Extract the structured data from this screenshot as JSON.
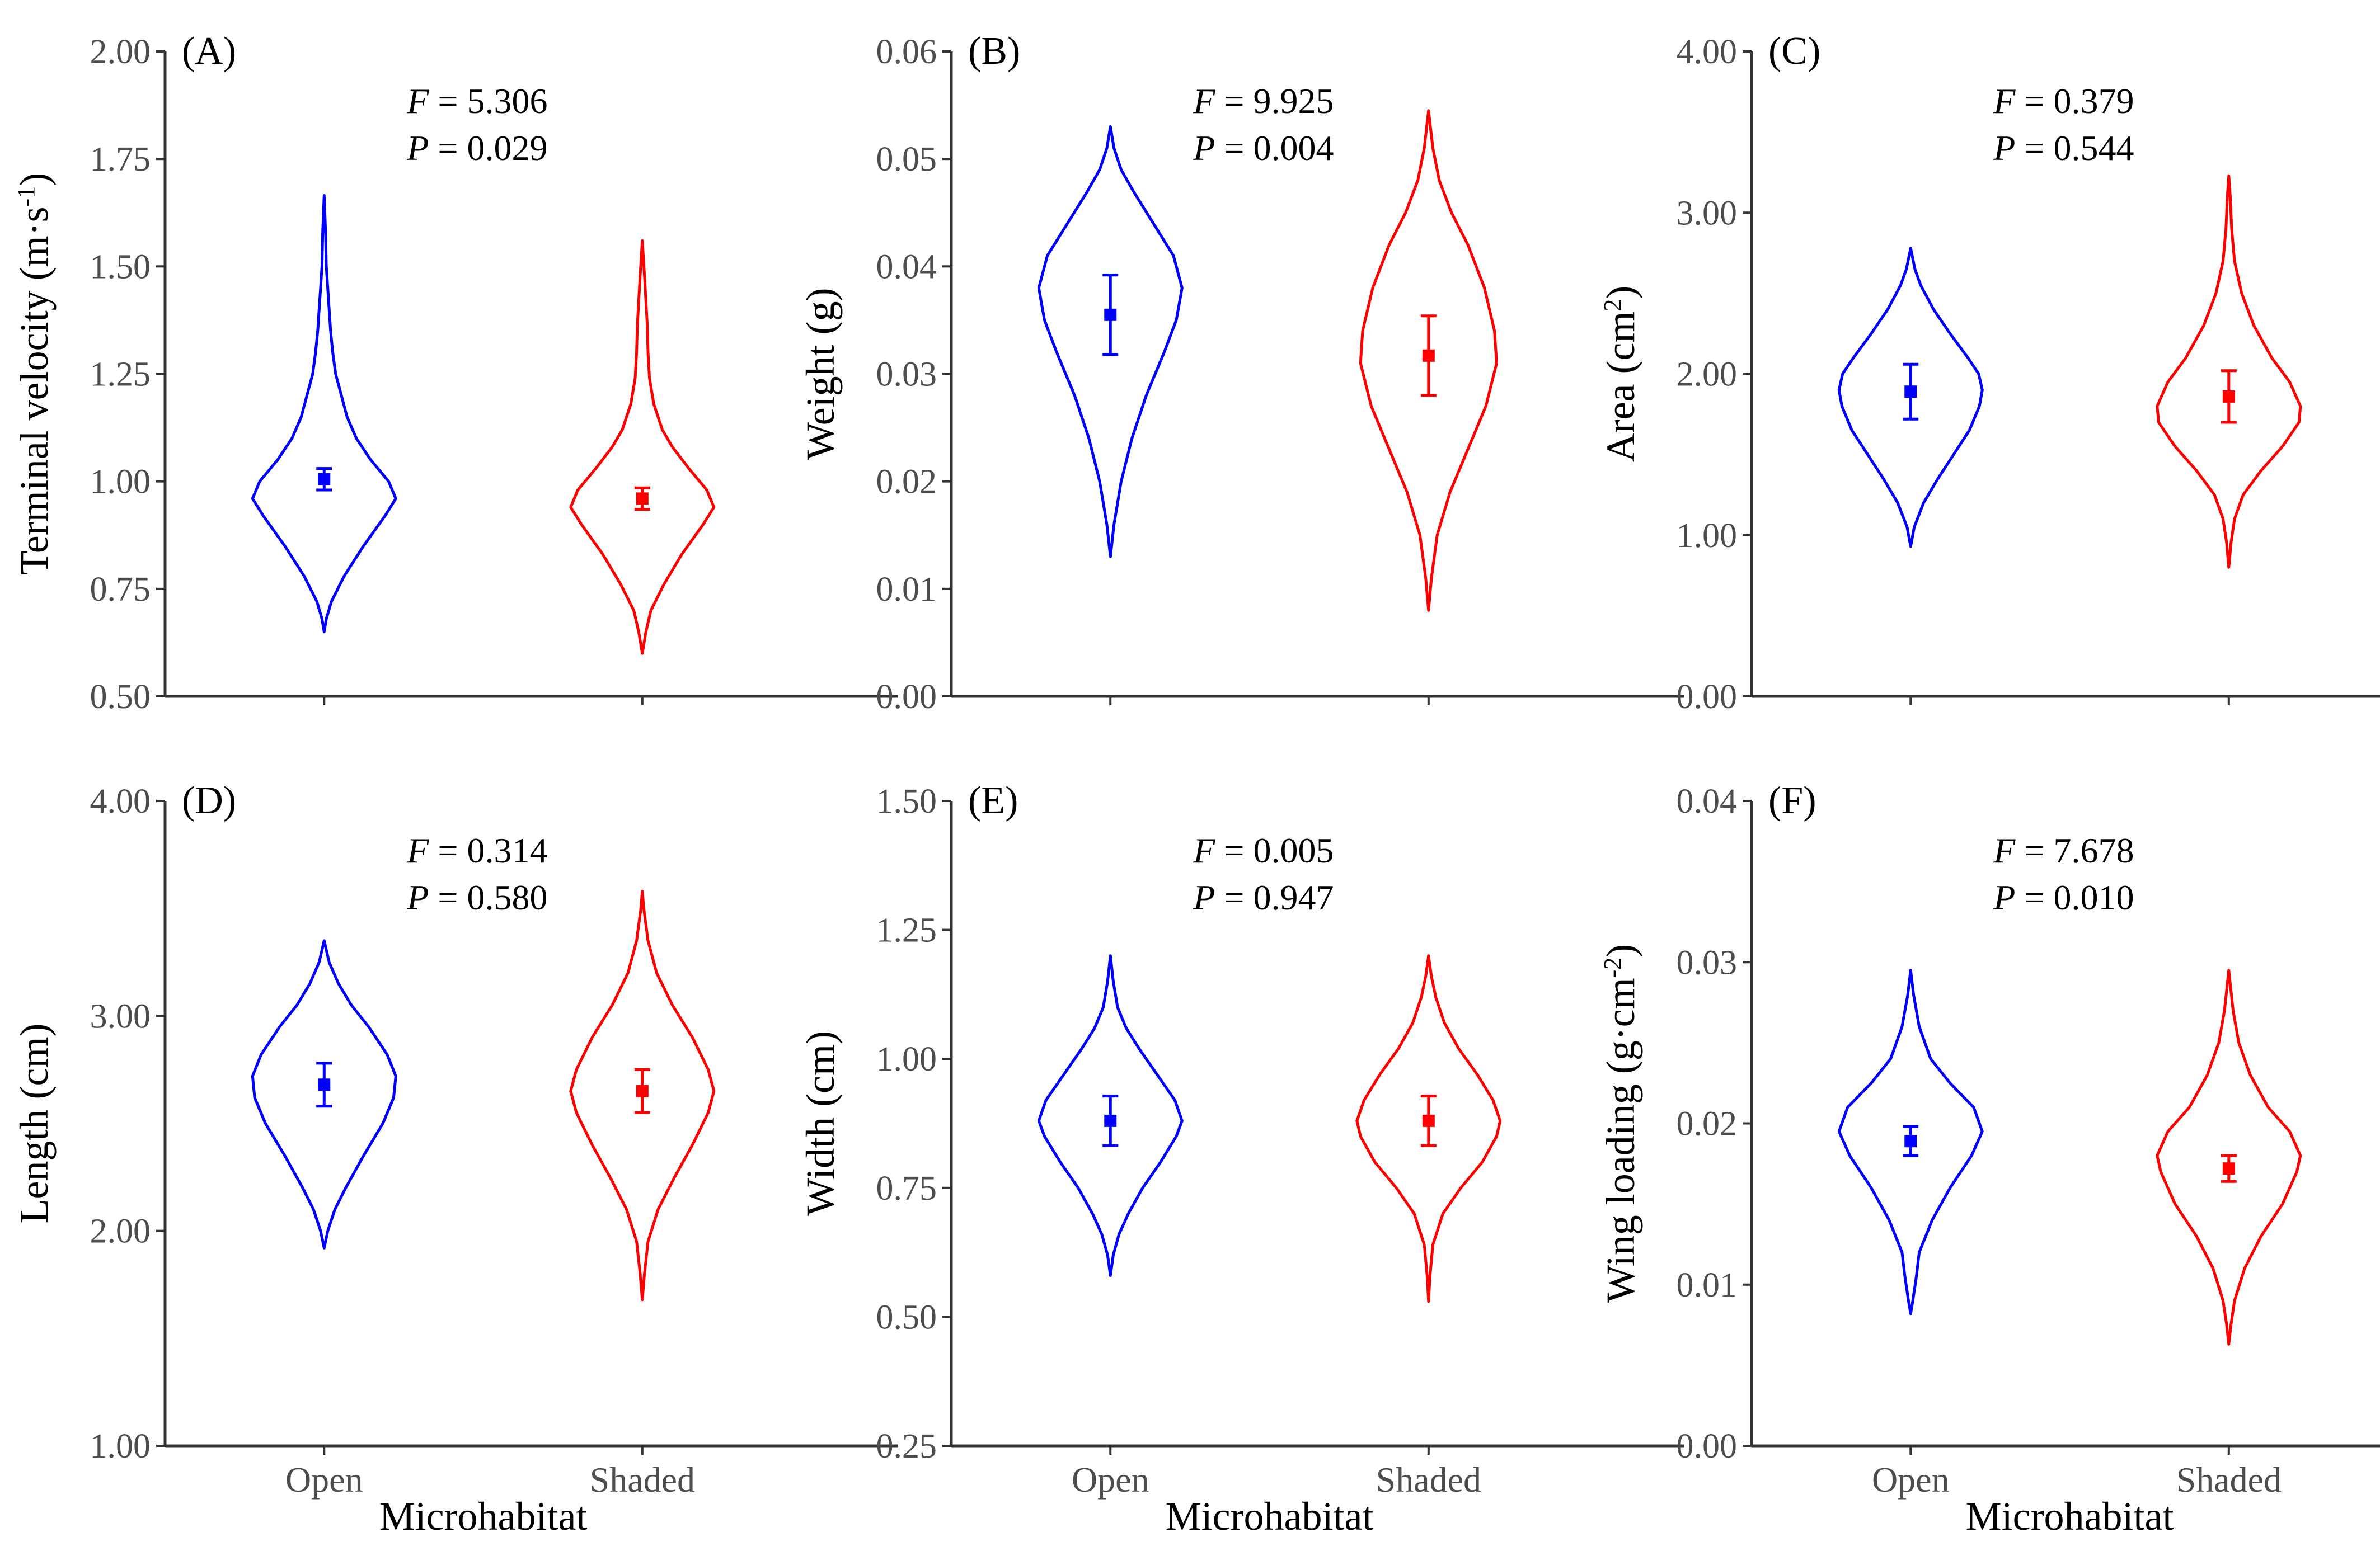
{
  "chart_data": {
    "type": "violin",
    "layout": "2x3 grid",
    "series_colors": {
      "Open": "#0000ff",
      "Shaded": "#ff0000"
    },
    "x_title": "Microhabitat",
    "categories": [
      "Open",
      "Shaded"
    ],
    "panels": [
      {
        "tag": "(A)",
        "ylabel_main": "Terminal velocity (m·s",
        "ylabel_sup": "-1",
        "ylabel_end": ")",
        "f_label": "F",
        "f_value": " = 5.306",
        "p_label": "P",
        "p_value": " = 0.029",
        "ylim": [
          0.5,
          2.0
        ],
        "ticks": [
          "0.50",
          "0.75",
          "1.00",
          "1.25",
          "1.50",
          "1.75",
          "2.00"
        ],
        "show_xlabels": false,
        "groups": [
          {
            "name": "Open",
            "color": "#0000ff",
            "mean": 1.005,
            "err": 0.025,
            "min": 0.65,
            "max": 1.665,
            "profile": [
              [
                0.65,
                0.0
              ],
              [
                0.68,
                0.03
              ],
              [
                0.72,
                0.1
              ],
              [
                0.78,
                0.28
              ],
              [
                0.85,
                0.55
              ],
              [
                0.92,
                0.85
              ],
              [
                0.96,
                1.0
              ],
              [
                1.0,
                0.9
              ],
              [
                1.05,
                0.65
              ],
              [
                1.1,
                0.45
              ],
              [
                1.15,
                0.32
              ],
              [
                1.2,
                0.24
              ],
              [
                1.25,
                0.16
              ],
              [
                1.3,
                0.12
              ],
              [
                1.35,
                0.09
              ],
              [
                1.4,
                0.07
              ],
              [
                1.45,
                0.05
              ],
              [
                1.5,
                0.03
              ],
              [
                1.58,
                0.02
              ],
              [
                1.665,
                0.0
              ]
            ]
          },
          {
            "name": "Shaded",
            "color": "#ff0000",
            "mean": 0.96,
            "err": 0.025,
            "min": 0.6,
            "max": 1.56,
            "profile": [
              [
                0.6,
                0.0
              ],
              [
                0.65,
                0.05
              ],
              [
                0.7,
                0.12
              ],
              [
                0.76,
                0.3
              ],
              [
                0.83,
                0.55
              ],
              [
                0.9,
                0.85
              ],
              [
                0.94,
                1.0
              ],
              [
                0.98,
                0.9
              ],
              [
                1.03,
                0.65
              ],
              [
                1.08,
                0.42
              ],
              [
                1.12,
                0.28
              ],
              [
                1.18,
                0.16
              ],
              [
                1.24,
                0.1
              ],
              [
                1.3,
                0.08
              ],
              [
                1.36,
                0.07
              ],
              [
                1.42,
                0.05
              ],
              [
                1.48,
                0.03
              ],
              [
                1.56,
                0.0
              ]
            ]
          }
        ]
      },
      {
        "tag": "(B)",
        "ylabel_main": "Weight (g)",
        "ylabel_sup": "",
        "ylabel_end": "",
        "f_label": "F",
        "f_value": " = 9.925",
        "p_label": "P",
        "p_value": " = 0.004",
        "ylim": [
          0.0,
          0.06
        ],
        "ticks": [
          "0.00",
          "0.01",
          "0.02",
          "0.03",
          "0.04",
          "0.05",
          "0.06"
        ],
        "show_xlabels": false,
        "groups": [
          {
            "name": "Open",
            "color": "#0000ff",
            "mean": 0.0355,
            "err": 0.0037,
            "min": 0.013,
            "max": 0.053,
            "profile": [
              [
                0.013,
                0.0
              ],
              [
                0.016,
                0.05
              ],
              [
                0.02,
                0.15
              ],
              [
                0.024,
                0.3
              ],
              [
                0.028,
                0.5
              ],
              [
                0.032,
                0.75
              ],
              [
                0.035,
                0.92
              ],
              [
                0.038,
                1.0
              ],
              [
                0.041,
                0.88
              ],
              [
                0.044,
                0.6
              ],
              [
                0.047,
                0.32
              ],
              [
                0.049,
                0.15
              ],
              [
                0.051,
                0.05
              ],
              [
                0.053,
                0.0
              ]
            ]
          },
          {
            "name": "Shaded",
            "color": "#ff0000",
            "mean": 0.0317,
            "err": 0.0037,
            "min": 0.008,
            "max": 0.0545,
            "profile": [
              [
                0.008,
                0.0
              ],
              [
                0.011,
                0.04
              ],
              [
                0.015,
                0.12
              ],
              [
                0.019,
                0.3
              ],
              [
                0.023,
                0.55
              ],
              [
                0.027,
                0.8
              ],
              [
                0.031,
                0.95
              ],
              [
                0.034,
                0.92
              ],
              [
                0.038,
                0.78
              ],
              [
                0.042,
                0.55
              ],
              [
                0.045,
                0.32
              ],
              [
                0.048,
                0.15
              ],
              [
                0.051,
                0.06
              ],
              [
                0.0545,
                0.0
              ]
            ]
          }
        ]
      },
      {
        "tag": "(C)",
        "ylabel_main": "Area (cm",
        "ylabel_sup": "2",
        "ylabel_end": ")",
        "f_label": "F",
        "f_value": " = 0.379",
        "p_label": "P",
        "p_value": " = 0.544",
        "ylim": [
          0.0,
          4.0
        ],
        "ticks": [
          "0.00",
          "1.00",
          "2.00",
          "3.00",
          "4.00"
        ],
        "show_xlabels": false,
        "groups": [
          {
            "name": "Open",
            "color": "#0000ff",
            "mean": 1.89,
            "err": 0.17,
            "min": 0.93,
            "max": 2.78,
            "profile": [
              [
                0.93,
                0.0
              ],
              [
                1.05,
                0.05
              ],
              [
                1.2,
                0.18
              ],
              [
                1.35,
                0.38
              ],
              [
                1.5,
                0.6
              ],
              [
                1.65,
                0.82
              ],
              [
                1.8,
                0.96
              ],
              [
                1.9,
                1.0
              ],
              [
                2.0,
                0.95
              ],
              [
                2.1,
                0.8
              ],
              [
                2.25,
                0.55
              ],
              [
                2.4,
                0.32
              ],
              [
                2.55,
                0.14
              ],
              [
                2.65,
                0.06
              ],
              [
                2.78,
                0.0
              ]
            ]
          },
          {
            "name": "Shaded",
            "color": "#ff0000",
            "mean": 1.86,
            "err": 0.16,
            "min": 0.8,
            "max": 3.23,
            "profile": [
              [
                0.8,
                0.0
              ],
              [
                0.95,
                0.03
              ],
              [
                1.1,
                0.08
              ],
              [
                1.25,
                0.2
              ],
              [
                1.4,
                0.45
              ],
              [
                1.55,
                0.75
              ],
              [
                1.7,
                0.98
              ],
              [
                1.8,
                1.0
              ],
              [
                1.95,
                0.85
              ],
              [
                2.1,
                0.6
              ],
              [
                2.3,
                0.35
              ],
              [
                2.5,
                0.18
              ],
              [
                2.7,
                0.08
              ],
              [
                2.9,
                0.04
              ],
              [
                3.1,
                0.02
              ],
              [
                3.23,
                0.0
              ]
            ]
          }
        ]
      },
      {
        "tag": "(D)",
        "ylabel_main": "Length (cm)",
        "ylabel_sup": "",
        "ylabel_end": "",
        "f_label": "F",
        "f_value": " = 0.314",
        "p_label": "P",
        "p_value": " = 0.580",
        "ylim": [
          1.0,
          4.0
        ],
        "ticks": [
          "1.00",
          "2.00",
          "3.00",
          "4.00"
        ],
        "show_xlabels": true,
        "groups": [
          {
            "name": "Open",
            "color": "#0000ff",
            "mean": 2.68,
            "err": 0.1,
            "min": 1.92,
            "max": 3.35,
            "profile": [
              [
                1.92,
                0.0
              ],
              [
                2.0,
                0.05
              ],
              [
                2.1,
                0.15
              ],
              [
                2.2,
                0.3
              ],
              [
                2.35,
                0.55
              ],
              [
                2.5,
                0.82
              ],
              [
                2.62,
                0.97
              ],
              [
                2.72,
                1.0
              ],
              [
                2.82,
                0.88
              ],
              [
                2.95,
                0.62
              ],
              [
                3.05,
                0.38
              ],
              [
                3.15,
                0.2
              ],
              [
                3.25,
                0.07
              ],
              [
                3.35,
                0.0
              ]
            ]
          },
          {
            "name": "Shaded",
            "color": "#ff0000",
            "mean": 2.65,
            "err": 0.1,
            "min": 1.68,
            "max": 3.58,
            "profile": [
              [
                1.68,
                0.0
              ],
              [
                1.8,
                0.03
              ],
              [
                1.95,
                0.08
              ],
              [
                2.1,
                0.22
              ],
              [
                2.25,
                0.45
              ],
              [
                2.4,
                0.7
              ],
              [
                2.55,
                0.92
              ],
              [
                2.65,
                1.0
              ],
              [
                2.75,
                0.92
              ],
              [
                2.9,
                0.7
              ],
              [
                3.05,
                0.42
              ],
              [
                3.2,
                0.2
              ],
              [
                3.35,
                0.08
              ],
              [
                3.5,
                0.02
              ],
              [
                3.58,
                0.0
              ]
            ]
          }
        ]
      },
      {
        "tag": "(E)",
        "ylabel_main": "Width (cm)",
        "ylabel_sup": "",
        "ylabel_end": "",
        "f_label": "F",
        "f_value": " = 0.005",
        "p_label": "P",
        "p_value": " = 0.947",
        "ylim": [
          0.25,
          1.5
        ],
        "ticks": [
          "0.25",
          "0.50",
          "0.75",
          "1.00",
          "1.25",
          "1.50"
        ],
        "show_xlabels": true,
        "groups": [
          {
            "name": "Open",
            "color": "#0000ff",
            "mean": 0.88,
            "err": 0.048,
            "min": 0.58,
            "max": 1.2,
            "profile": [
              [
                0.58,
                0.0
              ],
              [
                0.62,
                0.04
              ],
              [
                0.66,
                0.12
              ],
              [
                0.7,
                0.25
              ],
              [
                0.75,
                0.45
              ],
              [
                0.8,
                0.7
              ],
              [
                0.85,
                0.92
              ],
              [
                0.88,
                1.0
              ],
              [
                0.92,
                0.9
              ],
              [
                0.97,
                0.65
              ],
              [
                1.02,
                0.4
              ],
              [
                1.06,
                0.22
              ],
              [
                1.1,
                0.1
              ],
              [
                1.15,
                0.04
              ],
              [
                1.2,
                0.0
              ]
            ]
          },
          {
            "name": "Shaded",
            "color": "#ff0000",
            "mean": 0.88,
            "err": 0.048,
            "min": 0.53,
            "max": 1.2,
            "profile": [
              [
                0.53,
                0.0
              ],
              [
                0.58,
                0.02
              ],
              [
                0.64,
                0.06
              ],
              [
                0.7,
                0.2
              ],
              [
                0.75,
                0.45
              ],
              [
                0.8,
                0.75
              ],
              [
                0.85,
                0.95
              ],
              [
                0.88,
                1.0
              ],
              [
                0.92,
                0.9
              ],
              [
                0.97,
                0.68
              ],
              [
                1.02,
                0.42
              ],
              [
                1.07,
                0.22
              ],
              [
                1.12,
                0.1
              ],
              [
                1.16,
                0.04
              ],
              [
                1.2,
                0.0
              ]
            ]
          }
        ]
      },
      {
        "tag": "(F)",
        "ylabel_main": "Wing loading (g·cm",
        "ylabel_sup": "-2",
        "ylabel_end": ")",
        "f_label": "F",
        "f_value": " = 7.678",
        "p_label": "P",
        "p_value": " = 0.010",
        "ylim": [
          0.0,
          0.04
        ],
        "ticks": [
          "0.00",
          "0.01",
          "0.02",
          "0.03",
          "0.04"
        ],
        "show_xlabels": true,
        "groups": [
          {
            "name": "Open",
            "color": "#0000ff",
            "mean": 0.0189,
            "err": 0.0009,
            "min": 0.0082,
            "max": 0.0295,
            "profile": [
              [
                0.0082,
                0.0
              ],
              [
                0.009,
                0.03
              ],
              [
                0.0105,
                0.08
              ],
              [
                0.012,
                0.12
              ],
              [
                0.014,
                0.3
              ],
              [
                0.016,
                0.55
              ],
              [
                0.018,
                0.85
              ],
              [
                0.0195,
                1.0
              ],
              [
                0.021,
                0.88
              ],
              [
                0.0225,
                0.55
              ],
              [
                0.024,
                0.28
              ],
              [
                0.026,
                0.12
              ],
              [
                0.028,
                0.04
              ],
              [
                0.0295,
                0.0
              ]
            ]
          },
          {
            "name": "Shaded",
            "color": "#ff0000",
            "mean": 0.0172,
            "err": 0.0008,
            "min": 0.0063,
            "max": 0.0295,
            "profile": [
              [
                0.0063,
                0.0
              ],
              [
                0.0075,
                0.03
              ],
              [
                0.009,
                0.08
              ],
              [
                0.011,
                0.22
              ],
              [
                0.013,
                0.45
              ],
              [
                0.015,
                0.75
              ],
              [
                0.017,
                0.95
              ],
              [
                0.018,
                1.0
              ],
              [
                0.0195,
                0.85
              ],
              [
                0.021,
                0.55
              ],
              [
                0.023,
                0.3
              ],
              [
                0.025,
                0.14
              ],
              [
                0.027,
                0.06
              ],
              [
                0.0295,
                0.0
              ]
            ]
          }
        ]
      }
    ]
  }
}
